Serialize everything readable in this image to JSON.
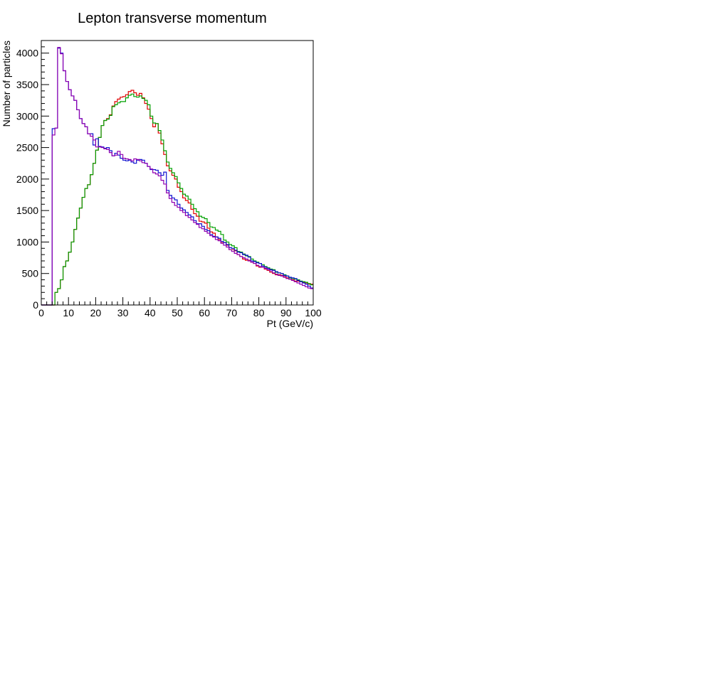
{
  "chart_data": {
    "type": "histogram",
    "title": "Lepton transverse momentum",
    "xlabel": "Pt (GeV/c)",
    "ylabel": "Number of particles",
    "xlim": [
      0,
      100
    ],
    "ylim": [
      0,
      4200
    ],
    "x_ticks": [
      0,
      10,
      20,
      30,
      40,
      50,
      60,
      70,
      80,
      90,
      100
    ],
    "y_ticks": [
      0,
      500,
      1000,
      1500,
      2000,
      2500,
      3000,
      3500,
      4000
    ],
    "bin_width": 1,
    "grid": false,
    "series": [
      {
        "name": "red",
        "color": "#e00000",
        "values": [
          0,
          0,
          0,
          0,
          0,
          200,
          260,
          400,
          610,
          700,
          840,
          1000,
          1200,
          1380,
          1540,
          1710,
          1850,
          1910,
          2070,
          2250,
          2460,
          2660,
          2850,
          2930,
          2960,
          3020,
          3160,
          3230,
          3270,
          3300,
          3310,
          3340,
          3390,
          3410,
          3370,
          3330,
          3360,
          3290,
          3200,
          3110,
          2960,
          2830,
          2880,
          2730,
          2560,
          2390,
          2210,
          2130,
          2060,
          2000,
          1870,
          1800,
          1700,
          1660,
          1620,
          1520,
          1450,
          1410,
          1330,
          1320,
          1300,
          1220,
          1160,
          1140,
          1080,
          1040,
          990,
          990,
          950,
          880,
          880,
          860,
          800,
          770,
          730,
          710,
          710,
          680,
          660,
          620,
          600,
          600,
          570,
          550,
          520,
          500,
          480,
          480,
          470,
          450,
          430,
          410,
          400,
          380,
          380,
          370,
          360,
          350,
          330,
          330
        ]
      },
      {
        "name": "green",
        "color": "#00a000",
        "values": [
          0,
          0,
          0,
          0,
          0,
          200,
          260,
          400,
          610,
          700,
          840,
          1000,
          1200,
          1380,
          1540,
          1710,
          1850,
          1910,
          2070,
          2250,
          2460,
          2660,
          2850,
          2930,
          2950,
          3010,
          3150,
          3180,
          3210,
          3230,
          3230,
          3290,
          3330,
          3350,
          3310,
          3300,
          3320,
          3280,
          3250,
          3180,
          3000,
          2890,
          2880,
          2770,
          2620,
          2450,
          2270,
          2170,
          2100,
          2040,
          1940,
          1850,
          1760,
          1730,
          1680,
          1600,
          1530,
          1480,
          1410,
          1390,
          1370,
          1310,
          1240,
          1230,
          1190,
          1170,
          1120,
          1030,
          1000,
          960,
          940,
          910,
          850,
          840,
          810,
          780,
          770,
          730,
          700,
          680,
          660,
          640,
          610,
          590,
          570,
          560,
          520,
          510,
          500,
          480,
          460,
          430,
          420,
          410,
          400,
          380,
          370,
          360,
          340,
          320
        ]
      },
      {
        "name": "blue",
        "color": "#1010d0",
        "values": [
          0,
          0,
          0,
          0,
          2800,
          2810,
          4080,
          4000,
          3720,
          3550,
          3420,
          3320,
          3250,
          3100,
          2960,
          2880,
          2830,
          2720,
          2720,
          2540,
          2640,
          2510,
          2510,
          2490,
          2500,
          2450,
          2370,
          2410,
          2380,
          2330,
          2300,
          2290,
          2300,
          2270,
          2250,
          2300,
          2310,
          2300,
          2250,
          2200,
          2150,
          2150,
          2140,
          2100,
          2060,
          2110,
          1820,
          1740,
          1700,
          1670,
          1600,
          1540,
          1510,
          1470,
          1430,
          1400,
          1340,
          1290,
          1290,
          1250,
          1200,
          1180,
          1120,
          1090,
          1080,
          1060,
          1010,
          990,
          960,
          910,
          900,
          870,
          840,
          830,
          800,
          790,
          760,
          700,
          690,
          670,
          660,
          620,
          600,
          580,
          560,
          550,
          530,
          510,
          500,
          470,
          460,
          440,
          430,
          420,
          390,
          370,
          350,
          330,
          300,
          270
        ]
      },
      {
        "name": "purple",
        "color": "#9000b0",
        "values": [
          0,
          0,
          0,
          0,
          2700,
          2810,
          4090,
          3990,
          3720,
          3550,
          3420,
          3320,
          3250,
          3100,
          2960,
          2880,
          2830,
          2720,
          2680,
          2620,
          2510,
          2520,
          2500,
          2480,
          2470,
          2420,
          2370,
          2380,
          2440,
          2390,
          2330,
          2320,
          2310,
          2290,
          2320,
          2310,
          2290,
          2260,
          2250,
          2200,
          2160,
          2100,
          2080,
          2050,
          1980,
          1920,
          1780,
          1690,
          1630,
          1580,
          1550,
          1500,
          1470,
          1420,
          1390,
          1350,
          1310,
          1280,
          1230,
          1210,
          1170,
          1140,
          1100,
          1080,
          1040,
          1020,
          980,
          950,
          920,
          880,
          850,
          820,
          800,
          770,
          750,
          730,
          700,
          680,
          660,
          630,
          610,
          600,
          580,
          560,
          540,
          510,
          490,
          470,
          460,
          440,
          420,
          410,
          390,
          370,
          350,
          330,
          310,
          290,
          270,
          260
        ]
      }
    ]
  }
}
